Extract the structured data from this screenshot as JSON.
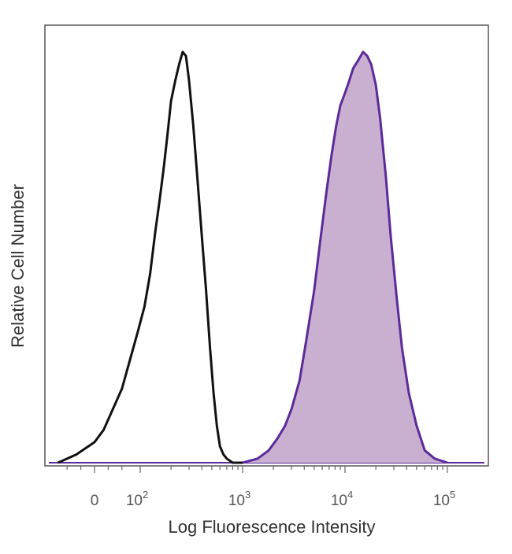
{
  "chart_data": {
    "type": "area",
    "title": "",
    "xlabel": "Log Fluorescence Intensity",
    "ylabel": "Relative Cell Number",
    "x_scale": "biexponential",
    "x_ticks": [
      {
        "value": 0,
        "base": "0",
        "exp": ""
      },
      {
        "value": 100,
        "base": "10",
        "exp": "2"
      },
      {
        "value": 1000,
        "base": "10",
        "exp": "3"
      },
      {
        "value": 10000,
        "base": "10",
        "exp": "4"
      },
      {
        "value": 100000,
        "base": "10",
        "exp": "5"
      }
    ],
    "grid": false,
    "legend": "none",
    "series": [
      {
        "role": "control",
        "style": "outline",
        "color": "#111111",
        "points": [
          [
            -80,
            0.0
          ],
          [
            -40,
            0.02
          ],
          [
            0,
            0.05
          ],
          [
            20,
            0.08
          ],
          [
            40,
            0.13
          ],
          [
            60,
            0.18
          ],
          [
            80,
            0.26
          ],
          [
            95,
            0.32
          ],
          [
            110,
            0.38
          ],
          [
            125,
            0.46
          ],
          [
            140,
            0.56
          ],
          [
            155,
            0.64
          ],
          [
            170,
            0.72
          ],
          [
            185,
            0.8
          ],
          [
            200,
            0.88
          ],
          [
            220,
            0.93
          ],
          [
            240,
            0.97
          ],
          [
            260,
            1.0
          ],
          [
            280,
            0.99
          ],
          [
            300,
            0.93
          ],
          [
            330,
            0.82
          ],
          [
            360,
            0.7
          ],
          [
            400,
            0.55
          ],
          [
            440,
            0.42
          ],
          [
            480,
            0.28
          ],
          [
            520,
            0.17
          ],
          [
            560,
            0.09
          ],
          [
            600,
            0.04
          ],
          [
            650,
            0.02
          ],
          [
            700,
            0.01
          ],
          [
            800,
            0.0
          ],
          [
            1000,
            0.0
          ]
        ]
      },
      {
        "role": "stained",
        "style": "filled",
        "color": "#5b2a9b",
        "fill": "#c9b0d1",
        "points": [
          [
            1000,
            0.0
          ],
          [
            1400,
            0.01
          ],
          [
            1800,
            0.03
          ],
          [
            2200,
            0.06
          ],
          [
            2600,
            0.09
          ],
          [
            3000,
            0.13
          ],
          [
            3600,
            0.2
          ],
          [
            4200,
            0.3
          ],
          [
            5000,
            0.42
          ],
          [
            5800,
            0.55
          ],
          [
            6600,
            0.66
          ],
          [
            7400,
            0.75
          ],
          [
            8200,
            0.82
          ],
          [
            9000,
            0.87
          ],
          [
            10000,
            0.9
          ],
          [
            11000,
            0.93
          ],
          [
            12000,
            0.96
          ],
          [
            13500,
            0.98
          ],
          [
            15000,
            1.0
          ],
          [
            16500,
            0.99
          ],
          [
            18000,
            0.97
          ],
          [
            20000,
            0.92
          ],
          [
            22000,
            0.84
          ],
          [
            25000,
            0.7
          ],
          [
            28000,
            0.55
          ],
          [
            32000,
            0.4
          ],
          [
            36000,
            0.28
          ],
          [
            42000,
            0.17
          ],
          [
            50000,
            0.09
          ],
          [
            60000,
            0.03
          ],
          [
            75000,
            0.01
          ],
          [
            100000,
            0.0
          ]
        ]
      }
    ]
  }
}
